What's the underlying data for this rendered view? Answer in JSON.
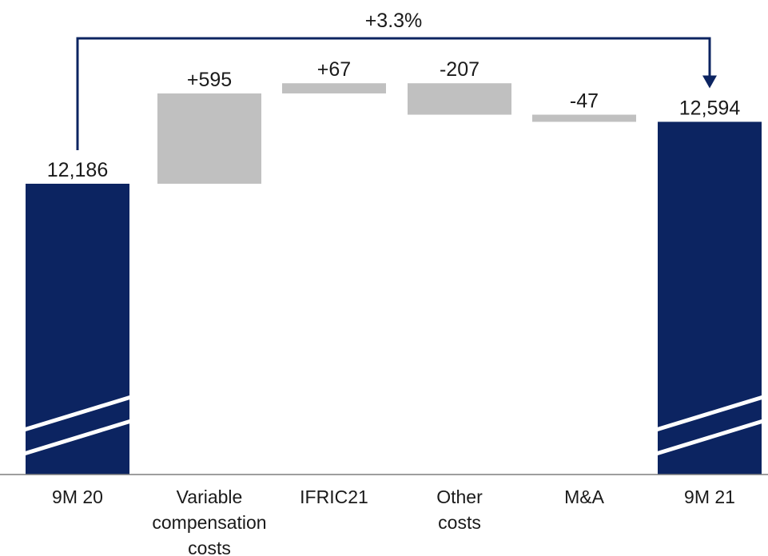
{
  "chart_data": {
    "type": "waterfall",
    "categories": [
      "9M 20",
      "Variable compensation costs",
      "IFRIC21",
      "Other costs",
      "M&A",
      "9M 21"
    ],
    "category_lines": [
      [
        "9M 20"
      ],
      [
        "Variable",
        "compensation",
        "costs"
      ],
      [
        "IFRIC21"
      ],
      [
        "Other",
        "costs"
      ],
      [
        "M&A"
      ],
      [
        "9M 21"
      ]
    ],
    "values": [
      12186,
      595,
      67,
      -207,
      -47,
      12594
    ],
    "bar_kinds": [
      "total",
      "delta",
      "delta",
      "delta",
      "delta",
      "total"
    ],
    "value_labels": [
      "12,186",
      "+595",
      "+67",
      "-207",
      "-47",
      "12,594"
    ],
    "change_label": "+3.3%",
    "axis_break": true,
    "colors": {
      "total": "#0c2461",
      "delta": "#c0c0c0",
      "arrow": "#0c2461",
      "axis": "#7f7f7f"
    }
  }
}
